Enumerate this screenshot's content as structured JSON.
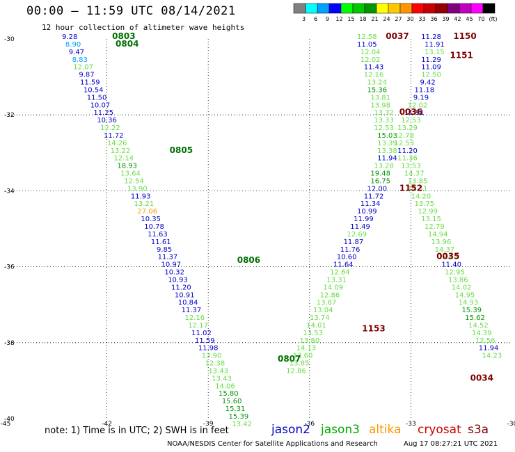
{
  "title": "00:00 – 11:59 UTC 08/14/2021",
  "subtitle": "12 hour collection of altimeter wave heights",
  "colorbar": {
    "colors": [
      "#808080",
      "#00ffff",
      "#00a0ff",
      "#0000ff",
      "#00ff00",
      "#00c800",
      "#009600",
      "#ffff00",
      "#ffc800",
      "#ff9600",
      "#ff0000",
      "#c80000",
      "#960000",
      "#800080",
      "#c000c0",
      "#ff00ff",
      "#000000"
    ],
    "labels": [
      "3",
      "6",
      "9",
      "12",
      "15",
      "18",
      "21",
      "24",
      "27",
      "30",
      "33",
      "36",
      "39",
      "42",
      "45",
      "70",
      "(ft)"
    ]
  },
  "note": "note: 1) Time is in UTC; 2) SWH is in feet",
  "missions": [
    {
      "name": "jason2",
      "color": "#0000c8"
    },
    {
      "name": "jason3",
      "color": "#00aa00"
    },
    {
      "name": "altika",
      "color": "#ff9600"
    },
    {
      "name": "cryosat",
      "color": "#c80000"
    },
    {
      "name": "s3a",
      "color": "#800000"
    }
  ],
  "footer": "NOAA/NESDIS Center for Satellite Applications and Research",
  "timestamp": "Aug 17 08:27:21 UTC 2021",
  "chart_data": {
    "type": "scatter",
    "xlim": [
      -45,
      -30
    ],
    "ylim": [
      -40,
      -30
    ],
    "x_ticks": [
      "-45",
      "-42",
      "-39",
      "-36",
      "-33",
      "-30"
    ],
    "y_ticks": [
      "-30",
      "-32",
      "-34",
      "-36",
      "-38",
      "-40"
    ],
    "grid": true,
    "time_labels": [
      {
        "text": "0803",
        "x": -41.5,
        "y": -30.0,
        "color": "#007000"
      },
      {
        "text": "0804",
        "x": -41.4,
        "y": -30.2,
        "color": "#007000"
      },
      {
        "text": "0805",
        "x": -39.8,
        "y": -33.0,
        "color": "#007000"
      },
      {
        "text": "0806",
        "x": -37.8,
        "y": -35.9,
        "color": "#007000"
      },
      {
        "text": "0807",
        "x": -36.6,
        "y": -38.5,
        "color": "#007000"
      },
      {
        "text": "0037",
        "x": -33.4,
        "y": -30.0,
        "color": "#800000"
      },
      {
        "text": "1150",
        "x": -31.4,
        "y": -30.0,
        "color": "#800000"
      },
      {
        "text": "1151",
        "x": -31.5,
        "y": -30.5,
        "color": "#800000"
      },
      {
        "text": "0036",
        "x": -33.0,
        "y": -32.0,
        "color": "#800000"
      },
      {
        "text": "1152",
        "x": -33.0,
        "y": -34.0,
        "color": "#800000"
      },
      {
        "text": "0035",
        "x": -31.9,
        "y": -35.8,
        "color": "#800000"
      },
      {
        "text": "1153",
        "x": -34.1,
        "y": -37.7,
        "color": "#800000"
      },
      {
        "text": "0034",
        "x": -30.9,
        "y": -39.0,
        "color": "#800000"
      }
    ],
    "points": [
      {
        "x": -43.1,
        "y": -30.0,
        "v": "9.28",
        "c": "#0000c8"
      },
      {
        "x": -43.0,
        "y": -30.2,
        "v": "8.90",
        "c": "#00a0ff"
      },
      {
        "x": -42.9,
        "y": -30.4,
        "v": "9.47",
        "c": "#0000c8"
      },
      {
        "x": -42.8,
        "y": -30.6,
        "v": "8.83",
        "c": "#00a0ff"
      },
      {
        "x": -42.7,
        "y": -30.8,
        "v": "12.07",
        "c": "#66dd44"
      },
      {
        "x": -42.6,
        "y": -31.0,
        "v": "9.87",
        "c": "#0000c8"
      },
      {
        "x": -42.5,
        "y": -31.2,
        "v": "11.59",
        "c": "#0000c8"
      },
      {
        "x": -42.4,
        "y": -31.4,
        "v": "10.54",
        "c": "#0000c8"
      },
      {
        "x": -42.3,
        "y": -31.6,
        "v": "11.50",
        "c": "#0000c8"
      },
      {
        "x": -42.2,
        "y": -31.8,
        "v": "10.07",
        "c": "#0000c8"
      },
      {
        "x": -42.1,
        "y": -32.0,
        "v": "11.25",
        "c": "#0000c8"
      },
      {
        "x": -42.0,
        "y": -32.2,
        "v": "10.36",
        "c": "#0000c8"
      },
      {
        "x": -41.9,
        "y": -32.4,
        "v": "12.22",
        "c": "#66dd44"
      },
      {
        "x": -41.8,
        "y": -32.6,
        "v": "11.72",
        "c": "#0000c8"
      },
      {
        "x": -41.7,
        "y": -32.8,
        "v": "14.26",
        "c": "#66dd44"
      },
      {
        "x": -41.6,
        "y": -33.0,
        "v": "13.22",
        "c": "#66dd44"
      },
      {
        "x": -41.5,
        "y": -33.2,
        "v": "12.14",
        "c": "#66dd44"
      },
      {
        "x": -41.4,
        "y": -33.4,
        "v": "18.93",
        "c": "#009600"
      },
      {
        "x": -41.3,
        "y": -33.6,
        "v": "13.64",
        "c": "#66dd44"
      },
      {
        "x": -41.2,
        "y": -33.8,
        "v": "12.54",
        "c": "#66dd44"
      },
      {
        "x": -41.1,
        "y": -34.0,
        "v": "13.90",
        "c": "#66dd44"
      },
      {
        "x": -41.0,
        "y": -34.2,
        "v": "11.93",
        "c": "#0000c8"
      },
      {
        "x": -40.9,
        "y": -34.4,
        "v": "13.21",
        "c": "#66dd44"
      },
      {
        "x": -40.8,
        "y": -34.6,
        "v": "27.06",
        "c": "#ff9600"
      },
      {
        "x": -40.7,
        "y": -34.8,
        "v": "10.35",
        "c": "#0000c8"
      },
      {
        "x": -40.6,
        "y": -35.0,
        "v": "10.78",
        "c": "#0000c8"
      },
      {
        "x": -40.5,
        "y": -35.2,
        "v": "11.63",
        "c": "#0000c8"
      },
      {
        "x": -40.4,
        "y": -35.4,
        "v": "11.61",
        "c": "#0000c8"
      },
      {
        "x": -40.3,
        "y": -35.6,
        "v": "9.85",
        "c": "#0000c8"
      },
      {
        "x": -40.2,
        "y": -35.8,
        "v": "11.37",
        "c": "#0000c8"
      },
      {
        "x": -40.1,
        "y": -36.0,
        "v": "10.97",
        "c": "#0000c8"
      },
      {
        "x": -40.0,
        "y": -36.2,
        "v": "10.32",
        "c": "#0000c8"
      },
      {
        "x": -39.9,
        "y": -36.4,
        "v": "10.93",
        "c": "#0000c8"
      },
      {
        "x": -39.8,
        "y": -36.6,
        "v": "11.20",
        "c": "#0000c8"
      },
      {
        "x": -39.7,
        "y": -36.8,
        "v": "10.91",
        "c": "#0000c8"
      },
      {
        "x": -39.6,
        "y": -37.0,
        "v": "10.84",
        "c": "#0000c8"
      },
      {
        "x": -39.5,
        "y": -37.2,
        "v": "11.37",
        "c": "#0000c8"
      },
      {
        "x": -39.4,
        "y": -37.4,
        "v": "12.16",
        "c": "#66dd44"
      },
      {
        "x": -39.3,
        "y": -37.6,
        "v": "12.17",
        "c": "#66dd44"
      },
      {
        "x": -39.2,
        "y": -37.8,
        "v": "11.02",
        "c": "#0000c8"
      },
      {
        "x": -39.1,
        "y": -38.0,
        "v": "11.59",
        "c": "#0000c8"
      },
      {
        "x": -39.0,
        "y": -38.2,
        "v": "11.98",
        "c": "#0000c8"
      },
      {
        "x": -38.9,
        "y": -38.4,
        "v": "13.90",
        "c": "#66dd44"
      },
      {
        "x": -38.8,
        "y": -38.6,
        "v": "12.38",
        "c": "#66dd44"
      },
      {
        "x": -38.7,
        "y": -38.8,
        "v": "13.43",
        "c": "#66dd44"
      },
      {
        "x": -38.6,
        "y": -39.0,
        "v": "13.43",
        "c": "#66dd44"
      },
      {
        "x": -38.5,
        "y": -39.2,
        "v": "14.06",
        "c": "#66dd44"
      },
      {
        "x": -38.4,
        "y": -39.4,
        "v": "15.80",
        "c": "#009600"
      },
      {
        "x": -38.3,
        "y": -39.6,
        "v": "15.60",
        "c": "#009600"
      },
      {
        "x": -38.2,
        "y": -39.8,
        "v": "15.31",
        "c": "#009600"
      },
      {
        "x": -38.1,
        "y": -40.0,
        "v": "15.39",
        "c": "#009600"
      },
      {
        "x": -38.0,
        "y": -40.2,
        "v": "13.42",
        "c": "#66dd44"
      },
      {
        "x": -34.3,
        "y": -30.0,
        "v": "12.58",
        "c": "#66dd44"
      },
      {
        "x": -34.3,
        "y": -30.2,
        "v": "11.05",
        "c": "#0000c8"
      },
      {
        "x": -34.2,
        "y": -30.4,
        "v": "12.04",
        "c": "#66dd44"
      },
      {
        "x": -34.2,
        "y": -30.6,
        "v": "12.02",
        "c": "#66dd44"
      },
      {
        "x": -34.1,
        "y": -30.8,
        "v": "11.43",
        "c": "#0000c8"
      },
      {
        "x": -34.1,
        "y": -31.0,
        "v": "12.16",
        "c": "#66dd44"
      },
      {
        "x": -34.0,
        "y": -31.2,
        "v": "13.24",
        "c": "#66dd44"
      },
      {
        "x": -34.0,
        "y": -31.4,
        "v": "15.36",
        "c": "#009600"
      },
      {
        "x": -33.9,
        "y": -31.6,
        "v": "13.81",
        "c": "#66dd44"
      },
      {
        "x": -33.9,
        "y": -31.8,
        "v": "13.98",
        "c": "#66dd44"
      },
      {
        "x": -33.8,
        "y": -32.0,
        "v": "13.32",
        "c": "#66dd44"
      },
      {
        "x": -33.8,
        "y": -32.2,
        "v": "13.33",
        "c": "#66dd44"
      },
      {
        "x": -33.8,
        "y": -32.4,
        "v": "12.53",
        "c": "#66dd44"
      },
      {
        "x": -33.7,
        "y": -32.6,
        "v": "15.03",
        "c": "#009600"
      },
      {
        "x": -33.7,
        "y": -32.8,
        "v": "13.39",
        "c": "#66dd44"
      },
      {
        "x": -33.7,
        "y": -33.0,
        "v": "13.38",
        "c": "#66dd44"
      },
      {
        "x": -33.7,
        "y": -33.2,
        "v": "11.94",
        "c": "#0000c8"
      },
      {
        "x": -33.8,
        "y": -33.4,
        "v": "13.28",
        "c": "#66dd44"
      },
      {
        "x": -33.9,
        "y": -33.6,
        "v": "19.48",
        "c": "#009600"
      },
      {
        "x": -33.9,
        "y": -33.8,
        "v": "16.75",
        "c": "#009600"
      },
      {
        "x": -34.0,
        "y": -34.0,
        "v": "12.00",
        "c": "#0000c8"
      },
      {
        "x": -34.1,
        "y": -34.2,
        "v": "11.72",
        "c": "#0000c8"
      },
      {
        "x": -34.2,
        "y": -34.4,
        "v": "11.34",
        "c": "#0000c8"
      },
      {
        "x": -34.3,
        "y": -34.6,
        "v": "10.99",
        "c": "#0000c8"
      },
      {
        "x": -34.4,
        "y": -34.8,
        "v": "11.99",
        "c": "#0000c8"
      },
      {
        "x": -34.5,
        "y": -35.0,
        "v": "11.49",
        "c": "#0000c8"
      },
      {
        "x": -34.6,
        "y": -35.2,
        "v": "12.69",
        "c": "#66dd44"
      },
      {
        "x": -34.7,
        "y": -35.4,
        "v": "11.87",
        "c": "#0000c8"
      },
      {
        "x": -34.8,
        "y": -35.6,
        "v": "11.76",
        "c": "#0000c8"
      },
      {
        "x": -34.9,
        "y": -35.8,
        "v": "10.60",
        "c": "#0000c8"
      },
      {
        "x": -35.0,
        "y": -36.0,
        "v": "11.64",
        "c": "#0000c8"
      },
      {
        "x": -35.1,
        "y": -36.2,
        "v": "12.64",
        "c": "#66dd44"
      },
      {
        "x": -35.2,
        "y": -36.4,
        "v": "13.31",
        "c": "#66dd44"
      },
      {
        "x": -35.3,
        "y": -36.6,
        "v": "14.09",
        "c": "#66dd44"
      },
      {
        "x": -35.4,
        "y": -36.8,
        "v": "12.86",
        "c": "#66dd44"
      },
      {
        "x": -35.5,
        "y": -37.0,
        "v": "13.87",
        "c": "#66dd44"
      },
      {
        "x": -35.6,
        "y": -37.2,
        "v": "13.04",
        "c": "#66dd44"
      },
      {
        "x": -35.7,
        "y": -37.4,
        "v": "13.74",
        "c": "#66dd44"
      },
      {
        "x": -35.8,
        "y": -37.6,
        "v": "14.01",
        "c": "#66dd44"
      },
      {
        "x": -35.9,
        "y": -37.8,
        "v": "13.53",
        "c": "#66dd44"
      },
      {
        "x": -36.0,
        "y": -38.0,
        "v": "13.80",
        "c": "#66dd44"
      },
      {
        "x": -36.1,
        "y": -38.2,
        "v": "14.13",
        "c": "#66dd44"
      },
      {
        "x": -36.2,
        "y": -38.4,
        "v": "13.60",
        "c": "#66dd44"
      },
      {
        "x": -36.3,
        "y": -38.6,
        "v": "13.85",
        "c": "#66dd44"
      },
      {
        "x": -36.4,
        "y": -38.8,
        "v": "12.86",
        "c": "#66dd44"
      },
      {
        "x": -32.4,
        "y": -30.0,
        "v": "11.28",
        "c": "#0000c8"
      },
      {
        "x": -32.3,
        "y": -30.2,
        "v": "11.91",
        "c": "#0000c8"
      },
      {
        "x": -32.3,
        "y": -30.4,
        "v": "13.15",
        "c": "#66dd44"
      },
      {
        "x": -32.4,
        "y": -30.6,
        "v": "11.29",
        "c": "#0000c8"
      },
      {
        "x": -32.4,
        "y": -30.8,
        "v": "11.09",
        "c": "#0000c8"
      },
      {
        "x": -32.4,
        "y": -31.0,
        "v": "12.50",
        "c": "#66dd44"
      },
      {
        "x": -32.5,
        "y": -31.2,
        "v": "9.42",
        "c": "#0000c8"
      },
      {
        "x": -32.6,
        "y": -31.4,
        "v": "11.18",
        "c": "#0000c8"
      },
      {
        "x": -32.7,
        "y": -31.6,
        "v": "9.19",
        "c": "#0000c8"
      },
      {
        "x": -32.8,
        "y": -31.8,
        "v": "12.02",
        "c": "#66dd44"
      },
      {
        "x": -32.9,
        "y": -32.0,
        "v": "11.91",
        "c": "#0000c8"
      },
      {
        "x": -33.0,
        "y": -32.2,
        "v": "12.53",
        "c": "#66dd44"
      },
      {
        "x": -33.1,
        "y": -32.4,
        "v": "13.29",
        "c": "#66dd44"
      },
      {
        "x": -33.2,
        "y": -32.6,
        "v": "12.78",
        "c": "#66dd44"
      },
      {
        "x": -33.2,
        "y": -32.8,
        "v": "12.53",
        "c": "#66dd44"
      },
      {
        "x": -33.1,
        "y": -33.0,
        "v": "11.20",
        "c": "#0000c8"
      },
      {
        "x": -33.1,
        "y": -33.2,
        "v": "11.36",
        "c": "#66dd44"
      },
      {
        "x": -33.0,
        "y": -33.4,
        "v": "13.53",
        "c": "#66dd44"
      },
      {
        "x": -32.9,
        "y": -33.6,
        "v": "14.37",
        "c": "#66dd44"
      },
      {
        "x": -32.8,
        "y": -33.8,
        "v": "13.85",
        "c": "#66dd44"
      },
      {
        "x": -32.8,
        "y": -34.0,
        "v": "14.51",
        "c": "#66dd44"
      },
      {
        "x": -32.7,
        "y": -34.2,
        "v": "14.20",
        "c": "#66dd44"
      },
      {
        "x": -32.6,
        "y": -34.4,
        "v": "13.75",
        "c": "#66dd44"
      },
      {
        "x": -32.5,
        "y": -34.6,
        "v": "12.99",
        "c": "#66dd44"
      },
      {
        "x": -32.4,
        "y": -34.8,
        "v": "13.15",
        "c": "#66dd44"
      },
      {
        "x": -32.3,
        "y": -35.0,
        "v": "12.79",
        "c": "#66dd44"
      },
      {
        "x": -32.2,
        "y": -35.2,
        "v": "14.94",
        "c": "#66dd44"
      },
      {
        "x": -32.1,
        "y": -35.4,
        "v": "13.96",
        "c": "#66dd44"
      },
      {
        "x": -32.0,
        "y": -35.6,
        "v": "14.37",
        "c": "#66dd44"
      },
      {
        "x": -31.9,
        "y": -35.8,
        "v": "13.65",
        "c": "#66dd44"
      },
      {
        "x": -31.8,
        "y": -36.0,
        "v": "11.40",
        "c": "#0000c8"
      },
      {
        "x": -31.7,
        "y": -36.2,
        "v": "12.95",
        "c": "#66dd44"
      },
      {
        "x": -31.6,
        "y": -36.4,
        "v": "13.86",
        "c": "#66dd44"
      },
      {
        "x": -31.5,
        "y": -36.6,
        "v": "14.02",
        "c": "#66dd44"
      },
      {
        "x": -31.4,
        "y": -36.8,
        "v": "14.95",
        "c": "#66dd44"
      },
      {
        "x": -31.3,
        "y": -37.0,
        "v": "14.93",
        "c": "#66dd44"
      },
      {
        "x": -31.2,
        "y": -37.2,
        "v": "15.39",
        "c": "#009600"
      },
      {
        "x": -31.1,
        "y": -37.4,
        "v": "15.62",
        "c": "#009600"
      },
      {
        "x": -31.0,
        "y": -37.6,
        "v": "14.52",
        "c": "#66dd44"
      },
      {
        "x": -30.9,
        "y": -37.8,
        "v": "14.39",
        "c": "#66dd44"
      },
      {
        "x": -30.8,
        "y": -38.0,
        "v": "12.56",
        "c": "#66dd44"
      },
      {
        "x": -30.7,
        "y": -38.2,
        "v": "11.94",
        "c": "#0000c8"
      },
      {
        "x": -30.6,
        "y": -38.4,
        "v": "14.23",
        "c": "#66dd44"
      }
    ]
  }
}
